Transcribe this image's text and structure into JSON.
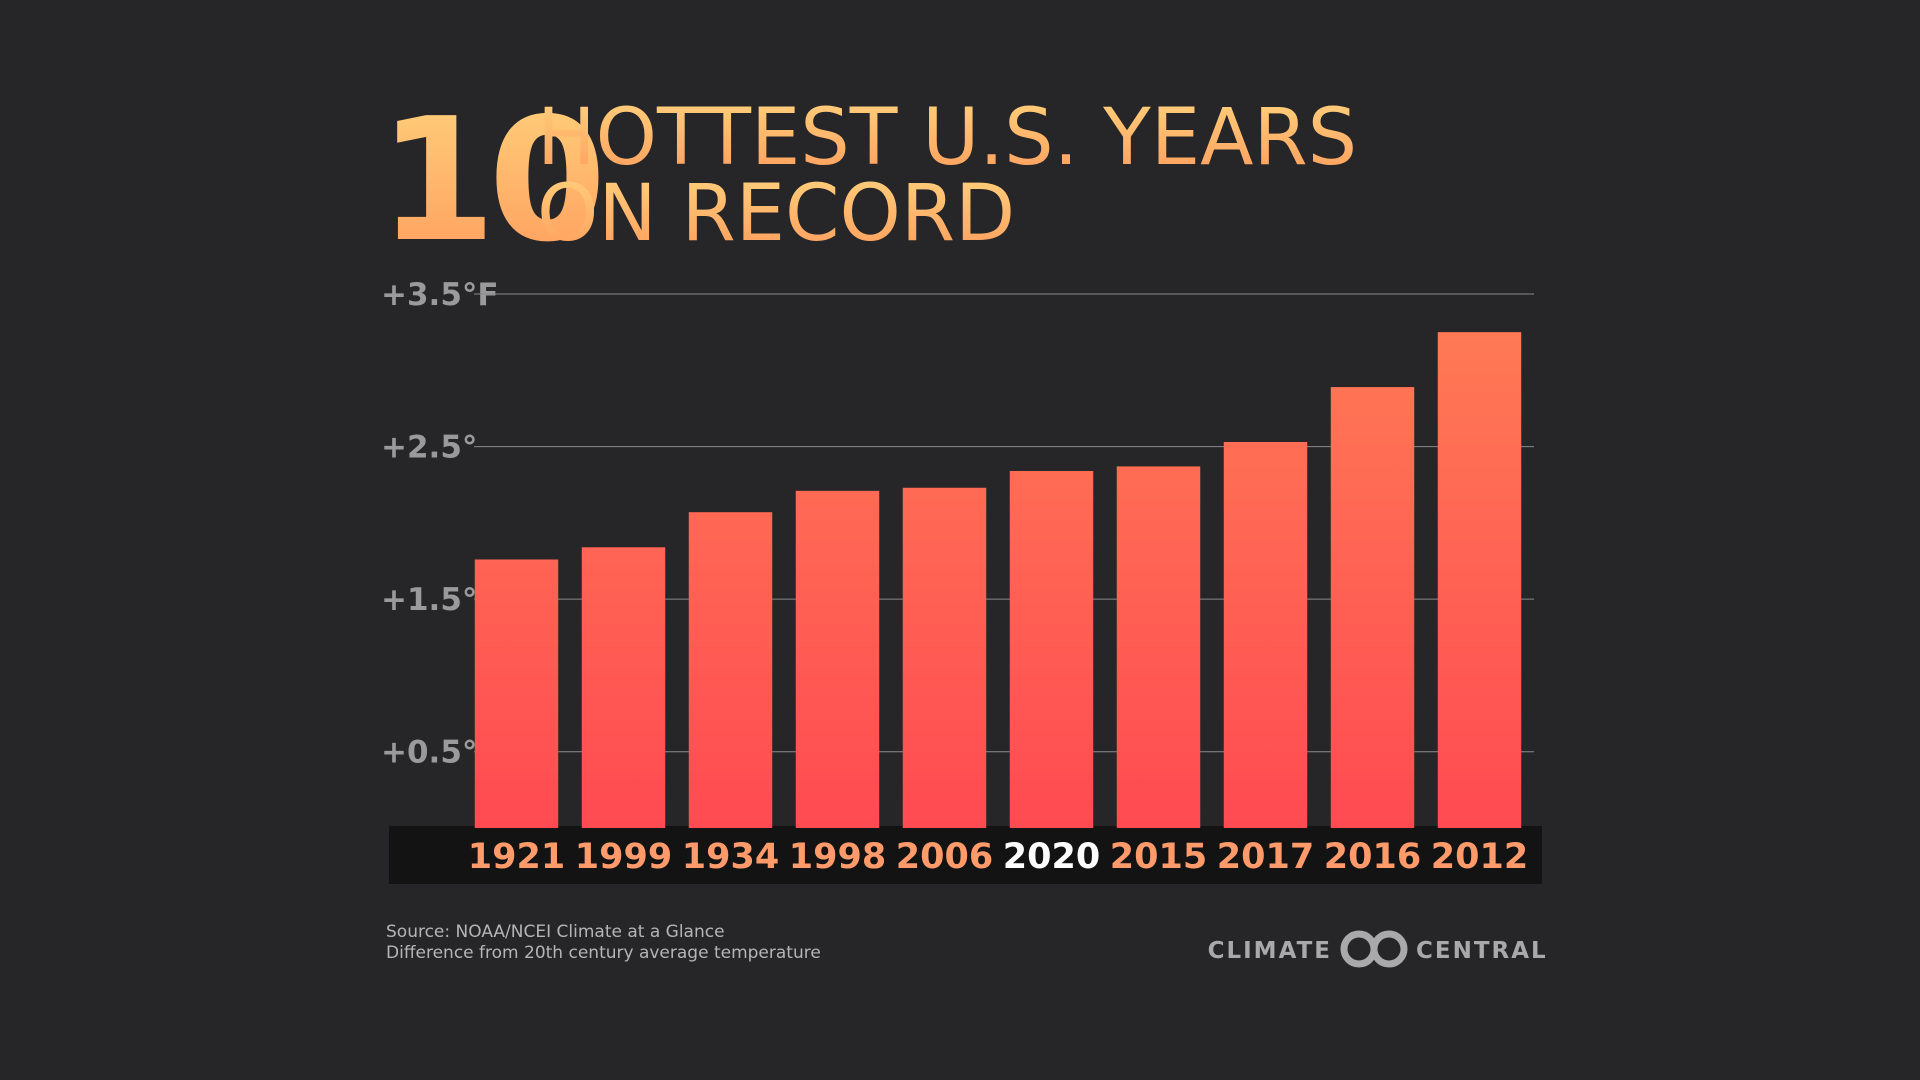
{
  "chart_data": {
    "type": "bar",
    "title_number": "10",
    "title_lines": [
      "HOTTEST U.S. YEARS",
      "ON RECORD"
    ],
    "categories": [
      "1921",
      "1999",
      "1934",
      "1998",
      "2006",
      "2020",
      "2015",
      "2017",
      "2016",
      "2012"
    ],
    "values": [
      1.76,
      1.84,
      2.07,
      2.21,
      2.23,
      2.34,
      2.37,
      2.53,
      2.89,
      3.25
    ],
    "color_top": "#ff7d55",
    "color_bottom": "#ff4a52",
    "label_color": "#ff9a6a",
    "highlight_index": 5,
    "highlight_label_color": "#ffffff",
    "ylim": [
      0,
      3.5
    ],
    "yticks": [
      {
        "value": 0.5,
        "label": "+0.5°"
      },
      {
        "value": 1.5,
        "label": "+1.5°"
      },
      {
        "value": 2.5,
        "label": "+2.5°"
      },
      {
        "value": 3.5,
        "label": "+3.5°F"
      }
    ],
    "grid": true,
    "source": "Source: NOAA/NCEI Climate at a Glance",
    "note": "Difference from 20th century average temperature"
  },
  "brand": {
    "left": "CLIMATE",
    "right": "CENTRAL"
  }
}
